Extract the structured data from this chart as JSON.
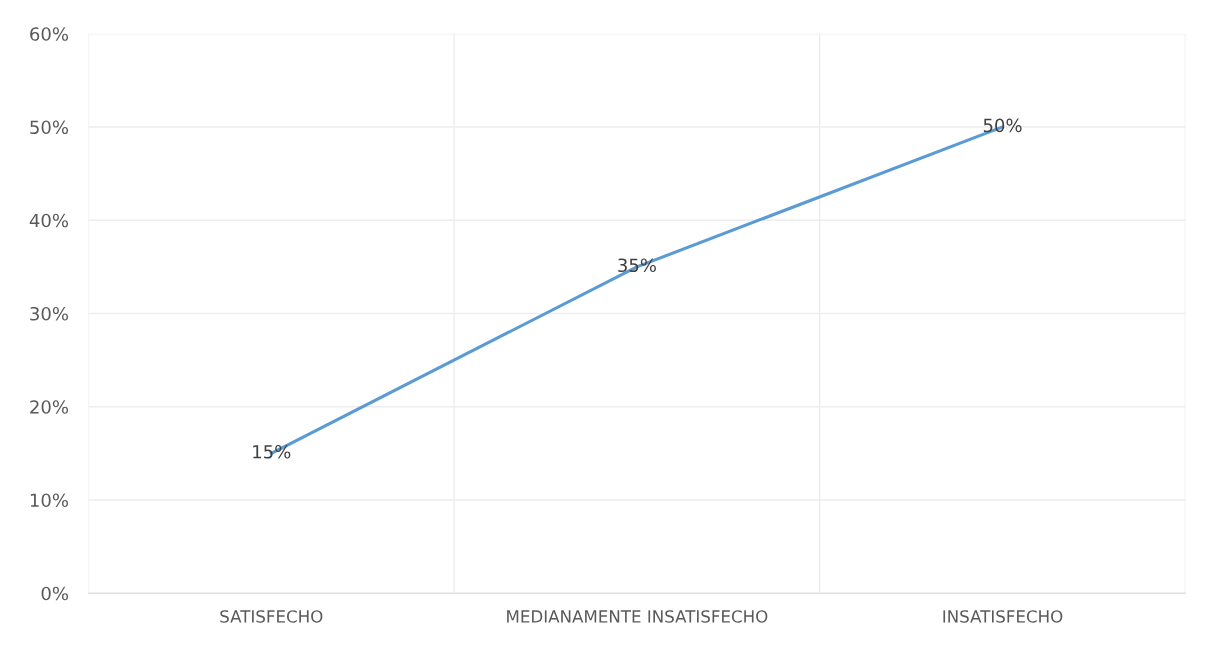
{
  "chart_data": {
    "type": "line",
    "categories": [
      "SATISFECHO",
      "MEDIANAMENTE INSATISFECHO",
      "INSATISFECHO"
    ],
    "series": [
      {
        "color": "#5b9bd5",
        "values": [
          15,
          35,
          50
        ],
        "value_labels": [
          "15%",
          "35%",
          "50%"
        ]
      }
    ],
    "ylim": [
      0,
      60
    ],
    "yticks": [
      {
        "value": 0,
        "label": "0%"
      },
      {
        "value": 10,
        "label": "10%"
      },
      {
        "value": 20,
        "label": "20%"
      },
      {
        "value": 30,
        "label": "30%"
      },
      {
        "value": 40,
        "label": "40%"
      },
      {
        "value": 50,
        "label": "50%"
      },
      {
        "value": 60,
        "label": "60%"
      }
    ],
    "grid": true,
    "line_style": "solid"
  }
}
